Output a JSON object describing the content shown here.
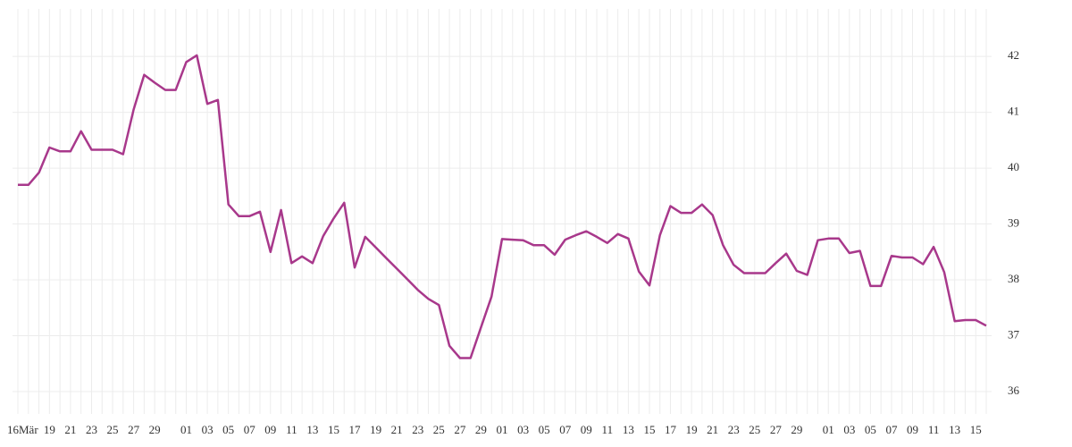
{
  "chart_data": {
    "type": "line",
    "categories": [
      "16Mär",
      null,
      null,
      "19",
      null,
      "21",
      null,
      "23",
      null,
      "25",
      null,
      "27",
      null,
      "29",
      null,
      null,
      "01",
      null,
      "03",
      null,
      "05",
      null,
      "07",
      null,
      "09",
      null,
      "11",
      null,
      "13",
      null,
      "15",
      null,
      "17",
      null,
      "19",
      null,
      "21",
      null,
      "23",
      null,
      "25",
      null,
      "27",
      null,
      "29",
      null,
      "01",
      null,
      "03",
      null,
      "05",
      null,
      "07",
      null,
      "09",
      null,
      "11",
      null,
      "13",
      null,
      "15",
      null,
      "17",
      null,
      "19",
      null,
      "21",
      null,
      "23",
      null,
      "25",
      null,
      "27",
      null,
      "29",
      null,
      null,
      "01",
      null,
      "03",
      null,
      "05",
      null,
      "07",
      null,
      "09",
      null,
      "11",
      null,
      "13",
      null,
      "15",
      null
    ],
    "series": [
      {
        "color": "#a8388b",
        "values": [
          39.7,
          39.7,
          39.92,
          40.37,
          40.3,
          40.3,
          40.66,
          40.33,
          40.33,
          40.33,
          40.25,
          41.05,
          41.67,
          41.53,
          41.4,
          41.4,
          41.9,
          42.02,
          41.15,
          41.22,
          39.35,
          39.14,
          39.14,
          39.22,
          38.5,
          39.25,
          38.3,
          38.42,
          38.3,
          38.78,
          39.1,
          39.38,
          38.22,
          38.77,
          38.58,
          38.39,
          38.2,
          38.01,
          37.82,
          37.66,
          37.55,
          36.82,
          36.6,
          36.6,
          37.15,
          37.7,
          38.73,
          38.72,
          38.71,
          38.62,
          38.62,
          38.45,
          38.72,
          38.8,
          38.87,
          38.77,
          38.66,
          38.82,
          38.74,
          38.15,
          37.9,
          38.8,
          39.32,
          39.2,
          39.2,
          39.35,
          39.16,
          38.62,
          38.27,
          38.12,
          38.12,
          38.12,
          38.3,
          38.47,
          38.16,
          38.09,
          38.71,
          38.74,
          38.74,
          38.48,
          38.52,
          37.89,
          37.89,
          38.43,
          38.4,
          38.4,
          38.28,
          38.59,
          38.14,
          37.26,
          37.28,
          37.28,
          37.18
        ]
      }
    ],
    "ylim": [
      35.6,
      42.85
    ],
    "yticks": [
      36,
      37,
      38,
      39,
      40,
      41,
      42
    ],
    "grid": true
  }
}
